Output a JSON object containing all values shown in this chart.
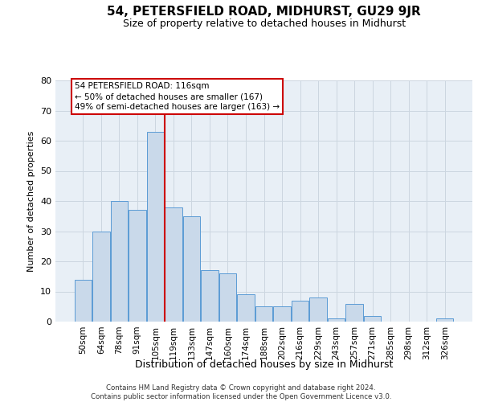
{
  "title": "54, PETERSFIELD ROAD, MIDHURST, GU29 9JR",
  "subtitle": "Size of property relative to detached houses in Midhurst",
  "xlabel": "Distribution of detached houses by size in Midhurst",
  "ylabel": "Number of detached properties",
  "categories": [
    "50sqm",
    "64sqm",
    "78sqm",
    "91sqm",
    "105sqm",
    "119sqm",
    "133sqm",
    "147sqm",
    "160sqm",
    "174sqm",
    "188sqm",
    "202sqm",
    "216sqm",
    "229sqm",
    "243sqm",
    "257sqm",
    "271sqm",
    "285sqm",
    "298sqm",
    "312sqm",
    "326sqm"
  ],
  "values": [
    14,
    30,
    40,
    37,
    63,
    38,
    35,
    17,
    16,
    9,
    5,
    5,
    7,
    8,
    1,
    6,
    2,
    0,
    0,
    0,
    1
  ],
  "bar_color": "#c9d9ea",
  "bar_edge_color": "#5b9bd5",
  "vline_color": "#cc0000",
  "vline_x": 4.5,
  "annotation_line1": "54 PETERSFIELD ROAD: 116sqm",
  "annotation_line2": "← 50% of detached houses are smaller (167)",
  "annotation_line3": "49% of semi-detached houses are larger (163) →",
  "annotation_box_edge_color": "#cc0000",
  "ylim": [
    0,
    80
  ],
  "yticks": [
    0,
    10,
    20,
    30,
    40,
    50,
    60,
    70,
    80
  ],
  "grid_color": "#ccd6e0",
  "background_color": "#e8eff6",
  "footer_line1": "Contains HM Land Registry data © Crown copyright and database right 2024.",
  "footer_line2": "Contains public sector information licensed under the Open Government Licence v3.0.",
  "title_fontsize": 11,
  "subtitle_fontsize": 9,
  "xlabel_fontsize": 9,
  "ylabel_fontsize": 8,
  "tick_fontsize": 7.5,
  "annot_fontsize": 7.5
}
